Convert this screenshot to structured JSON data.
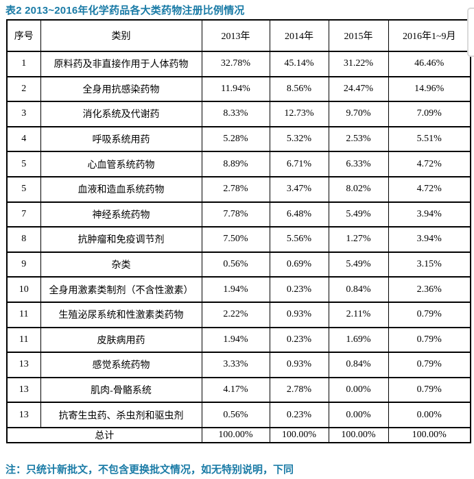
{
  "accent_color": "#1a7ba6",
  "artifact_border_color": "#d9d9d9",
  "title": "表2 2013~2016年化学药品各大类药物注册比例情况",
  "note": "注：只统计新批文，不包含更换批文情况，如无特别说明，下同",
  "table": {
    "headers": [
      "序号",
      "类别",
      "2013年",
      "2014年",
      "2015年",
      "2016年1~9月"
    ],
    "rows": [
      [
        "1",
        "原料药及非直接作用于人体药物",
        "32.78%",
        "45.14%",
        "31.22%",
        "46.46%"
      ],
      [
        "2",
        "全身用抗感染药物",
        "11.94%",
        "8.56%",
        "24.47%",
        "14.96%"
      ],
      [
        "3",
        "消化系统及代谢药",
        "8.33%",
        "12.73%",
        "9.70%",
        "7.09%"
      ],
      [
        "4",
        "呼吸系统用药",
        "5.28%",
        "5.32%",
        "2.53%",
        "5.51%"
      ],
      [
        "5",
        "心血管系统药物",
        "8.89%",
        "6.71%",
        "6.33%",
        "4.72%"
      ],
      [
        "5",
        "血液和造血系统药物",
        "2.78%",
        "3.47%",
        "8.02%",
        "4.72%"
      ],
      [
        "7",
        "神经系统药物",
        "7.78%",
        "6.48%",
        "5.49%",
        "3.94%"
      ],
      [
        "8",
        "抗肿瘤和免疫调节剂",
        "7.50%",
        "5.56%",
        "1.27%",
        "3.94%"
      ],
      [
        "9",
        "杂类",
        "0.56%",
        "0.69%",
        "5.49%",
        "3.15%"
      ],
      [
        "10",
        "全身用激素类制剂（不含性激素）",
        "1.94%",
        "0.23%",
        "0.84%",
        "2.36%"
      ],
      [
        "11",
        "生殖泌尿系统和性激素类药物",
        "2.22%",
        "0.93%",
        "2.11%",
        "0.79%"
      ],
      [
        "11",
        "皮肤病用药",
        "1.94%",
        "0.23%",
        "1.69%",
        "0.79%"
      ],
      [
        "13",
        "感觉系统药物",
        "3.33%",
        "0.93%",
        "0.84%",
        "0.79%"
      ],
      [
        "13",
        "肌肉-骨骼系统",
        "4.17%",
        "2.78%",
        "0.00%",
        "0.79%"
      ],
      [
        "13",
        "抗寄生虫药、杀虫剂和驱虫剂",
        "0.56%",
        "0.23%",
        "0.00%",
        "0.00%"
      ]
    ],
    "total": {
      "label": "总计",
      "values": [
        "100.00%",
        "100.00%",
        "100.00%",
        "100.00%"
      ]
    }
  }
}
